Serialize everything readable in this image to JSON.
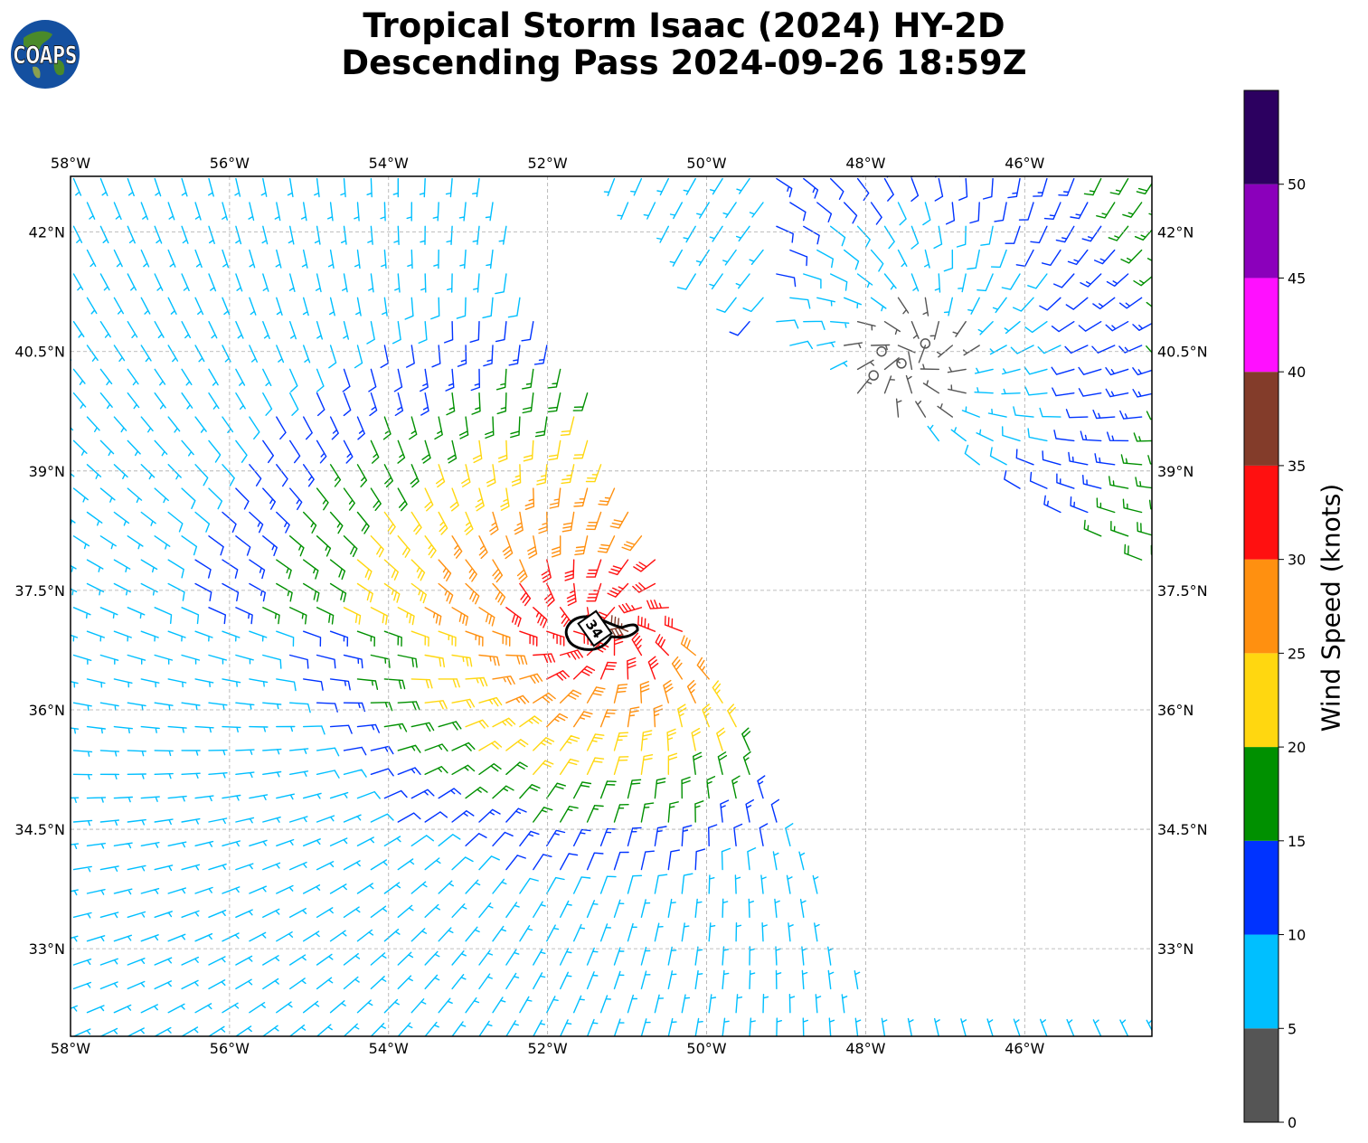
{
  "header": {
    "title_line1": "Tropical Storm Isaac (2024) HY-2D",
    "title_line2": "Descending Pass 2024-09-26 18:59Z"
  },
  "logo": {
    "text": "COAPS",
    "icon": "globe-icon"
  },
  "map": {
    "lon_range": [
      -58,
      -44.4
    ],
    "lat_range": [
      31.9,
      42.7
    ],
    "lon_ticks": [
      {
        "value": -58,
        "label": "58°W"
      },
      {
        "value": -56,
        "label": "56°W"
      },
      {
        "value": -54,
        "label": "54°W"
      },
      {
        "value": -52,
        "label": "52°W"
      },
      {
        "value": -50,
        "label": "50°W"
      },
      {
        "value": -48,
        "label": "48°W"
      },
      {
        "value": -46,
        "label": "46°W"
      }
    ],
    "lat_ticks": [
      {
        "value": 33,
        "label": "33°N"
      },
      {
        "value": 34.5,
        "label": "34.5°N"
      },
      {
        "value": 36,
        "label": "36°N"
      },
      {
        "value": 37.5,
        "label": "37.5°N"
      },
      {
        "value": 39,
        "label": "39°N"
      },
      {
        "value": 40.5,
        "label": "40.5°N"
      },
      {
        "value": 42,
        "label": "42°N"
      }
    ],
    "grid": true,
    "storm_center": {
      "lon": -51.3,
      "lat": 37.0
    },
    "contour_label": "34",
    "swath_gap_edges": {
      "left": [
        [
          -52.8,
          42.7
        ],
        [
          -50.0,
          36.9
        ],
        [
          -47.8,
          31.9
        ]
      ],
      "right": [
        [
          -51.5,
          42.7
        ],
        [
          -49.2,
          40.6
        ],
        [
          -44.4,
          37.6
        ]
      ]
    }
  },
  "colorbar": {
    "label": "Wind Speed (knots)",
    "range": [
      0,
      55
    ],
    "bins": [
      {
        "min": 0,
        "max": 5,
        "color": "#555555"
      },
      {
        "min": 5,
        "max": 10,
        "color": "#00bfff"
      },
      {
        "min": 10,
        "max": 15,
        "color": "#0033ff"
      },
      {
        "min": 15,
        "max": 20,
        "color": "#009000"
      },
      {
        "min": 20,
        "max": 25,
        "color": "#ffd710"
      },
      {
        "min": 25,
        "max": 30,
        "color": "#ff9010"
      },
      {
        "min": 30,
        "max": 35,
        "color": "#ff1010"
      },
      {
        "min": 35,
        "max": 40,
        "color": "#833c2a"
      },
      {
        "min": 40,
        "max": 45,
        "color": "#ff10ff"
      },
      {
        "min": 45,
        "max": 50,
        "color": "#8b00bb"
      },
      {
        "min": 50,
        "max": 55,
        "color": "#2c0060"
      }
    ],
    "ticks": [
      {
        "value": 0,
        "label": "0"
      },
      {
        "value": 5,
        "label": "5"
      },
      {
        "value": 10,
        "label": "10"
      },
      {
        "value": 15,
        "label": "15"
      },
      {
        "value": 20,
        "label": "20"
      },
      {
        "value": 25,
        "label": "25"
      },
      {
        "value": 30,
        "label": "30"
      },
      {
        "value": 35,
        "label": "35"
      },
      {
        "value": 40,
        "label": "40"
      },
      {
        "value": 45,
        "label": "45"
      },
      {
        "value": 50,
        "label": "50"
      }
    ]
  }
}
